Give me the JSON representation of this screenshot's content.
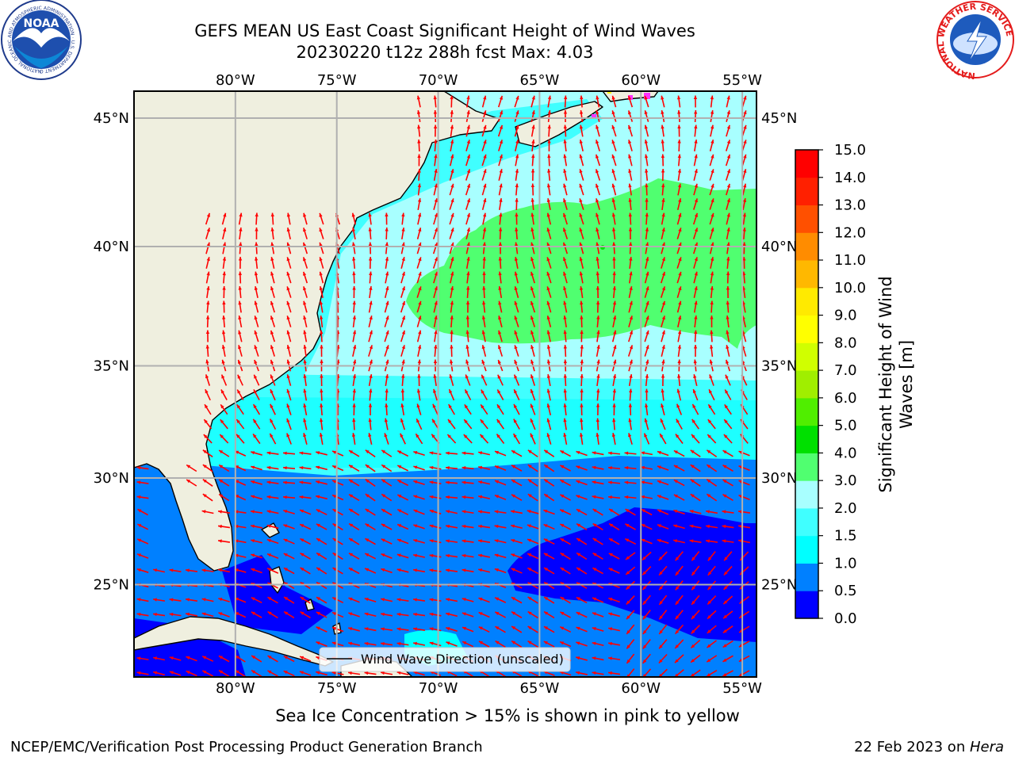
{
  "title": {
    "line1": "GEFS MEAN US East Coast Significant Height of Wind Waves",
    "line2": "20230220 t12z 288h fcst   Max: 4.03"
  },
  "logos": {
    "left": {
      "name": "noaa-logo",
      "text": "NOAA",
      "ring_text": "NATIONAL OCEANIC AND ATMOSPHERIC ADMINISTRATION · U.S. DEPARTMENT OF COMMERCE"
    },
    "right": {
      "name": "nws-logo",
      "ring_text": "NATIONAL WEATHER SERVICE"
    }
  },
  "map": {
    "lon_range": [
      -85,
      -54.3
    ],
    "lat_range": [
      20.5,
      46
    ],
    "lon_ticks": [
      {
        "value": -80,
        "label": "80°W"
      },
      {
        "value": -75,
        "label": "75°W"
      },
      {
        "value": -70,
        "label": "70°W"
      },
      {
        "value": -65,
        "label": "65°W"
      },
      {
        "value": -60,
        "label": "60°W"
      },
      {
        "value": -55,
        "label": "55°W"
      }
    ],
    "lat_ticks": [
      {
        "value": 45,
        "label": "45°N"
      },
      {
        "value": 40,
        "label": "40°N"
      },
      {
        "value": 35,
        "label": "35°N"
      },
      {
        "value": 30,
        "label": "30°N"
      },
      {
        "value": 25,
        "label": "25°N"
      }
    ],
    "gridlines": true,
    "legend": {
      "label": "Wind Wave Direction (unscaled)",
      "placement": "bottom-center"
    },
    "colors": {
      "land": "#efefdf",
      "coast": "#000000",
      "grid": "#b0b0b0",
      "arrow": "#ff0000",
      "ice": "#ff33ff"
    }
  },
  "colorbar": {
    "label": "Significant Height of Wind Waves [m]",
    "ticks": [
      "0.0",
      "0.5",
      "1.0",
      "1.5",
      "2.0",
      "3.0",
      "4.0",
      "5.0",
      "6.0",
      "7.0",
      "8.0",
      "9.0",
      "10.0",
      "11.0",
      "12.0",
      "13.0",
      "14.0",
      "15.0"
    ],
    "colors": [
      "#0000ff",
      "#0080ff",
      "#00ffff",
      "#40ffff",
      "#a8ffff",
      "#50ff70",
      "#00e000",
      "#50ee00",
      "#a0ee00",
      "#d0ff00",
      "#ffff00",
      "#ffea00",
      "#ffb800",
      "#ff8c00",
      "#ff5000",
      "#ff2000",
      "#ff0000"
    ]
  },
  "caption": "Sea Ice Concentration > 15% is shown in pink to yellow",
  "footer": {
    "left": "NCEP/EMC/Verification Post Processing Product Generation Branch",
    "right_date": "22 Feb 2023 on ",
    "right_host": "Hera"
  }
}
